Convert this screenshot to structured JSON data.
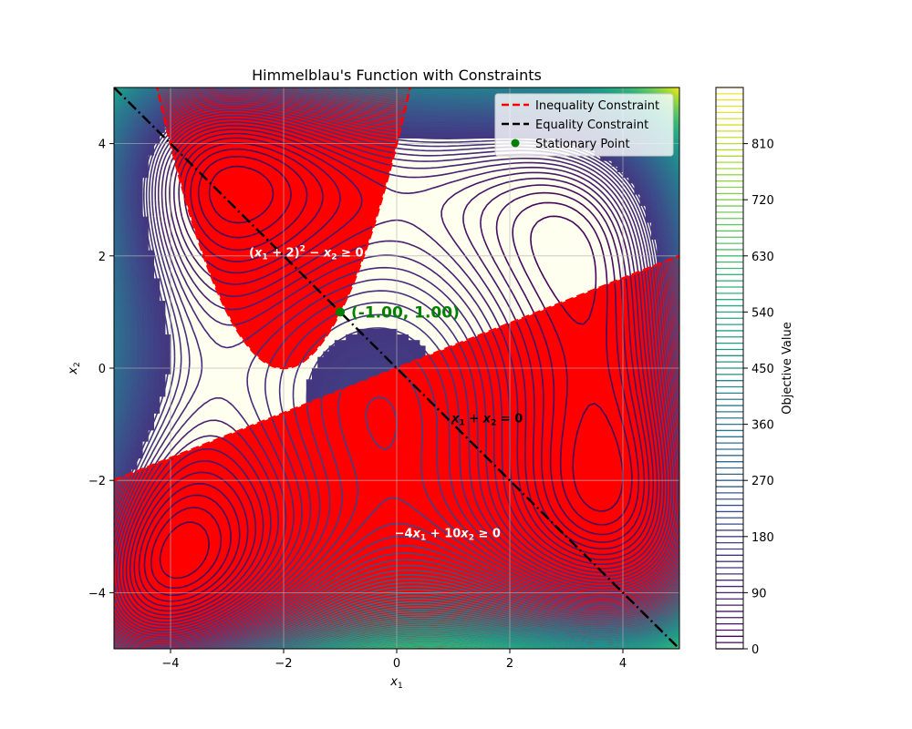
{
  "chart_data": {
    "type": "contour",
    "title": "Himmelblau's Function with Constraints",
    "xlabel": "x",
    "xlabel_sub": "1",
    "ylabel": "x",
    "ylabel_sub": "2",
    "xlim": [
      -5,
      5
    ],
    "ylim": [
      -5,
      5
    ],
    "xticks": [
      {
        "value": -4,
        "label": "−4"
      },
      {
        "value": -2,
        "label": "−2"
      },
      {
        "value": 0,
        "label": "0"
      },
      {
        "value": 2,
        "label": "2"
      },
      {
        "value": 4,
        "label": "4"
      }
    ],
    "yticks": [
      {
        "value": -4,
        "label": "−4"
      },
      {
        "value": -2,
        "label": "−2"
      },
      {
        "value": 0,
        "label": "0"
      },
      {
        "value": 2,
        "label": "2"
      },
      {
        "value": 4,
        "label": "4"
      }
    ],
    "grid": true,
    "colormap": "viridis",
    "contour_step": 10,
    "colorbar": {
      "label": "Objective Value",
      "range": [
        0,
        900
      ],
      "ticks": [
        0,
        90,
        180,
        270,
        360,
        450,
        540,
        630,
        720,
        810
      ],
      "tick_labels": [
        "0",
        "90",
        "180",
        "270",
        "360",
        "450",
        "540",
        "630",
        "720",
        "810"
      ]
    },
    "feasible_color": "#fffff0",
    "infeasible_color": "#ff0000",
    "constraints": {
      "inequality": [
        {
          "expr": "(x1+2)^2 - x2 >= 0",
          "label_parts": [
            "(",
            "x",
            "1",
            " + 2)",
            "2",
            " − ",
            "x",
            "2",
            " ≥ 0"
          ],
          "label_at": [
            -1.6,
            2.05
          ],
          "color": "#ffffff"
        },
        {
          "expr": "-4*x1 + 10*x2 >= 0",
          "label_parts": [
            "−4",
            "x",
            "1",
            " + 10",
            "x",
            "2",
            " ≥ 0"
          ],
          "label_at": [
            0.9,
            -2.95
          ],
          "color": "#ffffff"
        }
      ],
      "equality": {
        "expr": "x1 + x2 = 0",
        "label_parts": [
          "x",
          "1",
          " + ",
          "x",
          "2",
          " = 0"
        ],
        "label_at": [
          1.6,
          -0.9
        ],
        "color": "#000000"
      }
    },
    "stationary_point": {
      "x": -1.0,
      "y": 1.0,
      "label": "(-1.00, 1.00)",
      "color": "#008000"
    },
    "legend": {
      "position": "top-right",
      "entries": [
        {
          "label": "Inequality Constraint",
          "color": "#ff0000",
          "style": "dashed"
        },
        {
          "label": "Equality Constraint",
          "color": "#000000",
          "style": "dashed"
        },
        {
          "label": "Stationary Point",
          "color": "#008000",
          "style": "marker"
        }
      ]
    }
  }
}
